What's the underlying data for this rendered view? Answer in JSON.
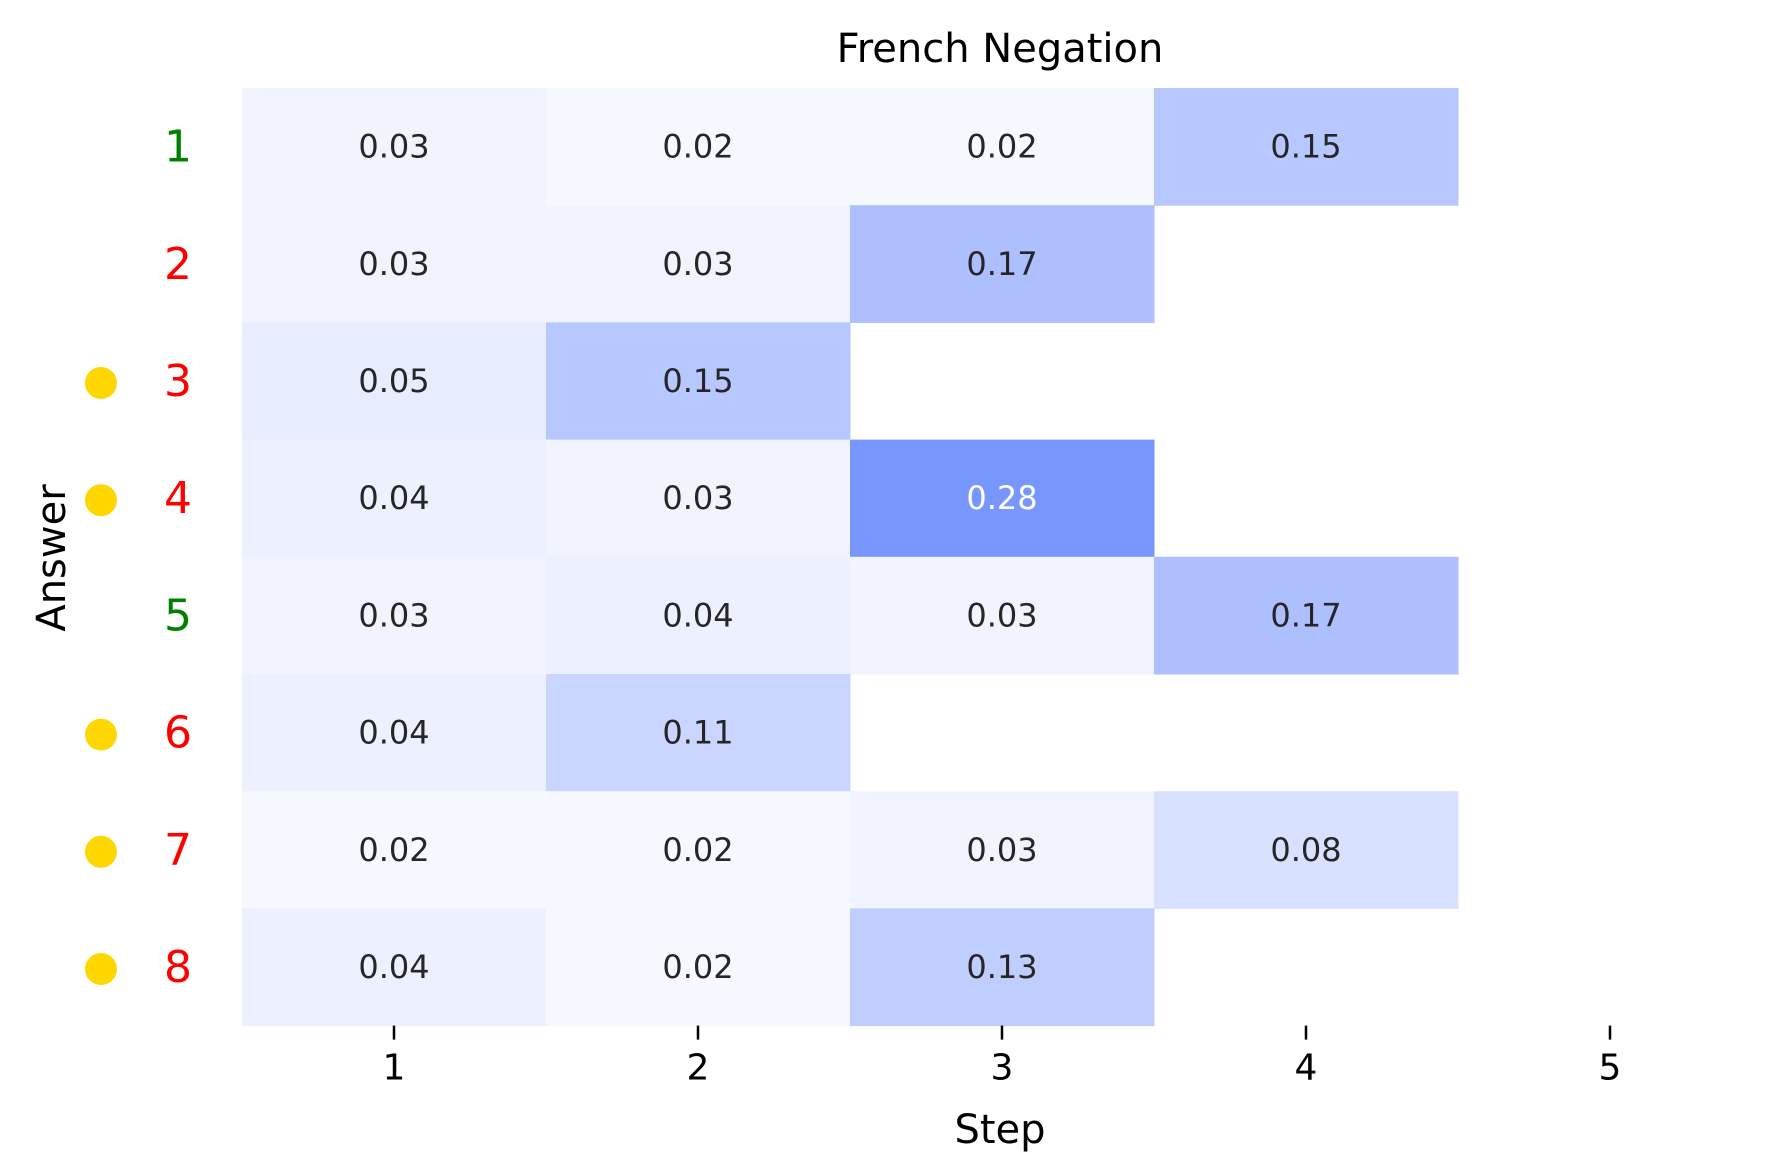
{
  "chart_data": {
    "type": "heatmap",
    "title": "French Negation",
    "xlabel": "Step",
    "ylabel": "Answer",
    "x_ticks": [
      "1",
      "2",
      "3",
      "4",
      "5"
    ],
    "y_ticks": [
      "1",
      "2",
      "3",
      "4",
      "5",
      "6",
      "7",
      "8"
    ],
    "y_tick_colors": [
      "#008000",
      "#ff0000",
      "#ff0000",
      "#ff0000",
      "#008000",
      "#ff0000",
      "#ff0000",
      "#ff0000"
    ],
    "marked_rows": [
      false,
      false,
      true,
      true,
      false,
      true,
      true,
      true
    ],
    "marker_color": "#ffd700",
    "values": [
      [
        0.03,
        0.02,
        0.02,
        0.15,
        null
      ],
      [
        0.03,
        0.03,
        0.17,
        null,
        null
      ],
      [
        0.05,
        0.15,
        null,
        null,
        null
      ],
      [
        0.04,
        0.03,
        0.28,
        null,
        null
      ],
      [
        0.03,
        0.04,
        0.03,
        0.17,
        null
      ],
      [
        0.04,
        0.11,
        null,
        null,
        null
      ],
      [
        0.02,
        0.02,
        0.03,
        0.08,
        null
      ],
      [
        0.04,
        0.02,
        0.13,
        null,
        null
      ]
    ],
    "value_labels": [
      [
        "0.03",
        "0.02",
        "0.02",
        "0.15",
        null
      ],
      [
        "0.03",
        "0.03",
        "0.17",
        null,
        null
      ],
      [
        "0.05",
        "0.15",
        null,
        null,
        null
      ],
      [
        "0.04",
        "0.03",
        "0.28",
        null,
        null
      ],
      [
        "0.03",
        "0.04",
        "0.03",
        "0.17",
        null
      ],
      [
        "0.04",
        "0.11",
        null,
        null,
        null
      ],
      [
        "0.02",
        "0.02",
        "0.03",
        "0.08",
        null
      ],
      [
        "0.04",
        "0.02",
        "0.13",
        null,
        null
      ]
    ],
    "color_low": "#ffffff",
    "color_high": "#7896ff",
    "value_range": [
      0,
      0.28
    ]
  }
}
